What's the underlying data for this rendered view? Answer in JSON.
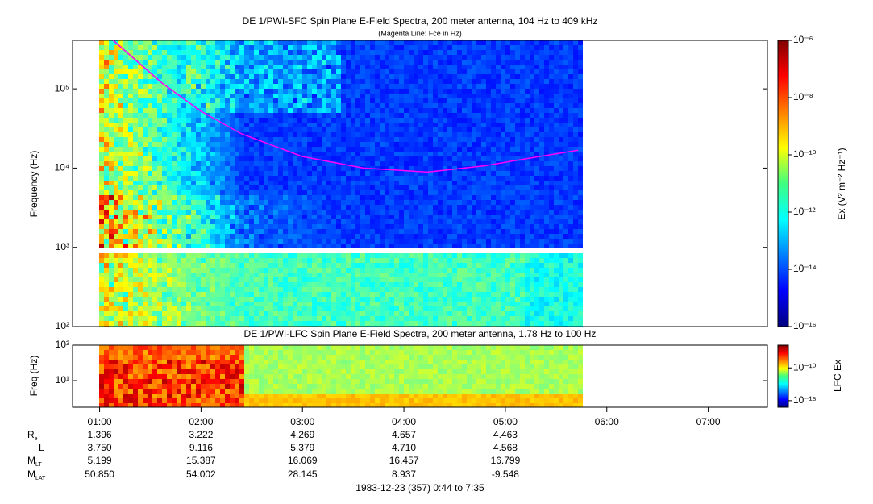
{
  "chart_data": [
    {
      "type": "spectrogram",
      "title": "DE 1/PWI-SFC  Spin Plane E-Field Spectra, 200 meter antenna, 104 Hz to 409 kHz",
      "subtitle": "(Magenta Line: Fce in Hz)",
      "ylabel": "Frequency (Hz)",
      "log_y": true,
      "ylim": [
        100,
        409000
      ],
      "yticks": [
        {
          "value": 100,
          "label": "10²"
        },
        {
          "value": 1000,
          "label": "10³"
        },
        {
          "value": 10000,
          "label": "10⁴"
        },
        {
          "value": 100000,
          "label": "10⁵"
        }
      ],
      "xlim": [
        44,
        455
      ],
      "series": [
        {
          "color": "#ff00ff",
          "x": [
            68,
            97,
            120,
            144,
            180,
            216,
            254,
            288,
            311,
            343
          ],
          "values": [
            409000,
            118000,
            52000,
            27000,
            14000,
            10000,
            8900,
            10700,
            13000,
            16800
          ]
        }
      ],
      "colorbar": {
        "label": "Ex (V² m⁻² Hz⁻¹)",
        "lim": [
          1e-16,
          1e-06
        ],
        "ticks": [
          {
            "value": 1e-06,
            "label": "10⁻⁶"
          },
          {
            "value": 1e-08,
            "label": "10⁻⁸"
          },
          {
            "value": 1e-10,
            "label": "10⁻¹⁰"
          },
          {
            "value": 1e-12,
            "label": "10⁻¹²"
          },
          {
            "value": 1e-14,
            "label": "10⁻¹⁴"
          },
          {
            "value": 1e-16,
            "label": "10⁻¹⁶"
          }
        ]
      }
    },
    {
      "type": "spectrogram",
      "title": "DE 1/PWI-LFC  Spin Plane E-Field Spectra, 200 meter antenna, 1.78 Hz to 100 Hz",
      "ylabel": "Freq (Hz)",
      "log_y": true,
      "ylim": [
        1.78,
        100
      ],
      "yticks": [
        {
          "value": 10,
          "label": "10¹"
        },
        {
          "value": 100,
          "label": "10²"
        }
      ],
      "xlim": [
        44,
        455
      ],
      "xticks": [
        {
          "value": 60,
          "label": "01:00"
        },
        {
          "value": 120,
          "label": "02:00"
        },
        {
          "value": 180,
          "label": "03:00"
        },
        {
          "value": 240,
          "label": "04:00"
        },
        {
          "value": 300,
          "label": "05:00"
        },
        {
          "value": 360,
          "label": "06:00"
        },
        {
          "value": 420,
          "label": "07:00"
        }
      ],
      "colorbar": {
        "label": "LFC Ex",
        "lim": [
          1e-16,
          3e-07
        ],
        "ticks": [
          {
            "value": 1e-10,
            "label": "10⁻¹⁰"
          },
          {
            "value": 1e-15,
            "label": "10⁻¹⁵"
          }
        ]
      }
    }
  ],
  "ephemeris": {
    "rows": [
      {
        "label": "R",
        "sub": "e",
        "values": [
          "1.396",
          "3.222",
          "4.269",
          "4.657",
          "4.463"
        ]
      },
      {
        "label": "L",
        "values": [
          "3.750",
          "9.116",
          "5.379",
          "4.710",
          "4.568"
        ]
      },
      {
        "label": "M",
        "sub": "LT",
        "values": [
          "5.199",
          "15.387",
          "16.069",
          "16.457",
          "16.799"
        ]
      },
      {
        "label": "M",
        "sub": "LAT",
        "values": [
          "50.850",
          "54.002",
          "28.145",
          "8.937",
          "-9.548"
        ]
      }
    ]
  },
  "footer": "1983-12-23 (357) 0:44 to 7:35"
}
